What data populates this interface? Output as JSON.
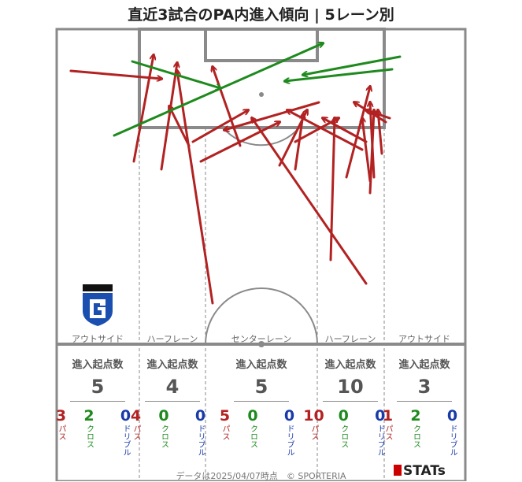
{
  "title": "直近3試合のPA内進入傾向 | 5レーン別",
  "colors": {
    "pass": "#b22222",
    "cross": "#1e8a1e",
    "dribble": "#1a3aa8",
    "lines": "#8a8a8a"
  },
  "lanes": [
    {
      "label": "アウトサイド",
      "head": "進入起点数",
      "total": "5",
      "pass": "3",
      "cross": "2",
      "dribble": "0"
    },
    {
      "label": "ハーフレーン",
      "head": "進入起点数",
      "total": "4",
      "pass": "4",
      "cross": "0",
      "dribble": "0"
    },
    {
      "label": "センターレーン",
      "head": "進入起点数",
      "total": "5",
      "pass": "5",
      "cross": "0",
      "dribble": "0"
    },
    {
      "label": "ハーフレーン",
      "head": "進入起点数",
      "total": "10",
      "pass": "10",
      "cross": "0",
      "dribble": "0"
    },
    {
      "label": "アウトサイド",
      "head": "進入起点数",
      "total": "3",
      "pass": "1",
      "cross": "2",
      "dribble": "0"
    }
  ],
  "captions": {
    "pass": "パス",
    "cross": "クロス",
    "dribble": "ドリブル"
  },
  "footer": "データは2025/04/07時点　© SPORTERIA",
  "brand": "STATs",
  "chart_data": {
    "type": "scatter",
    "title": "直近3試合のPA内進入傾向 | 5レーン別",
    "arrows": [
      {
        "kind": "pass",
        "from": [
          90,
          90
        ],
        "to": [
          205,
          100
        ]
      },
      {
        "kind": "pass",
        "from": [
          170,
          205
        ],
        "to": [
          195,
          70
        ]
      },
      {
        "kind": "pass",
        "from": [
          205,
          215
        ],
        "to": [
          225,
          80
        ]
      },
      {
        "kind": "pass",
        "from": [
          240,
          185
        ],
        "to": [
          215,
          135
        ]
      },
      {
        "kind": "pass",
        "from": [
          270,
          385
        ],
        "to": [
          225,
          90
        ]
      },
      {
        "kind": "pass",
        "from": [
          245,
          180
        ],
        "to": [
          315,
          140
        ]
      },
      {
        "kind": "pass",
        "from": [
          255,
          205
        ],
        "to": [
          355,
          155
        ]
      },
      {
        "kind": "pass",
        "from": [
          305,
          185
        ],
        "to": [
          270,
          85
        ]
      },
      {
        "kind": "pass",
        "from": [
          355,
          210
        ],
        "to": [
          390,
          140
        ]
      },
      {
        "kind": "pass",
        "from": [
          375,
          215
        ],
        "to": [
          385,
          145
        ]
      },
      {
        "kind": "pass",
        "from": [
          405,
          130
        ],
        "to": [
          285,
          165
        ]
      },
      {
        "kind": "pass",
        "from": [
          465,
          360
        ],
        "to": [
          320,
          150
        ]
      },
      {
        "kind": "pass",
        "from": [
          420,
          330
        ],
        "to": [
          425,
          150
        ]
      },
      {
        "kind": "pass",
        "from": [
          460,
          190
        ],
        "to": [
          365,
          140
        ]
      },
      {
        "kind": "pass",
        "from": [
          470,
          245
        ],
        "to": [
          475,
          140
        ]
      },
      {
        "kind": "pass",
        "from": [
          475,
          225
        ],
        "to": [
          470,
          130
        ]
      },
      {
        "kind": "pass",
        "from": [
          490,
          155
        ],
        "to": [
          450,
          130
        ]
      },
      {
        "kind": "pass",
        "from": [
          440,
          225
        ],
        "to": [
          470,
          110
        ]
      },
      {
        "kind": "pass",
        "from": [
          485,
          195
        ],
        "to": [
          480,
          140
        ]
      },
      {
        "kind": "pass",
        "from": [
          470,
          230
        ],
        "to": [
          460,
          150
        ]
      },
      {
        "kind": "pass",
        "from": [
          465,
          180
        ],
        "to": [
          410,
          150
        ]
      },
      {
        "kind": "pass",
        "from": [
          375,
          180
        ],
        "to": [
          430,
          150
        ]
      },
      {
        "kind": "pass",
        "from": [
          495,
          150
        ],
        "to": [
          465,
          140
        ]
      },
      {
        "kind": "cross",
        "from": [
          145,
          172
        ],
        "to": [
          410,
          55
        ]
      },
      {
        "kind": "cross",
        "from": [
          168,
          78
        ],
        "to": [
          280,
          112
        ]
      },
      {
        "kind": "cross",
        "from": [
          508,
          72
        ],
        "to": [
          385,
          95
        ]
      },
      {
        "kind": "cross",
        "from": [
          498,
          88
        ],
        "to": [
          362,
          103
        ]
      }
    ]
  }
}
